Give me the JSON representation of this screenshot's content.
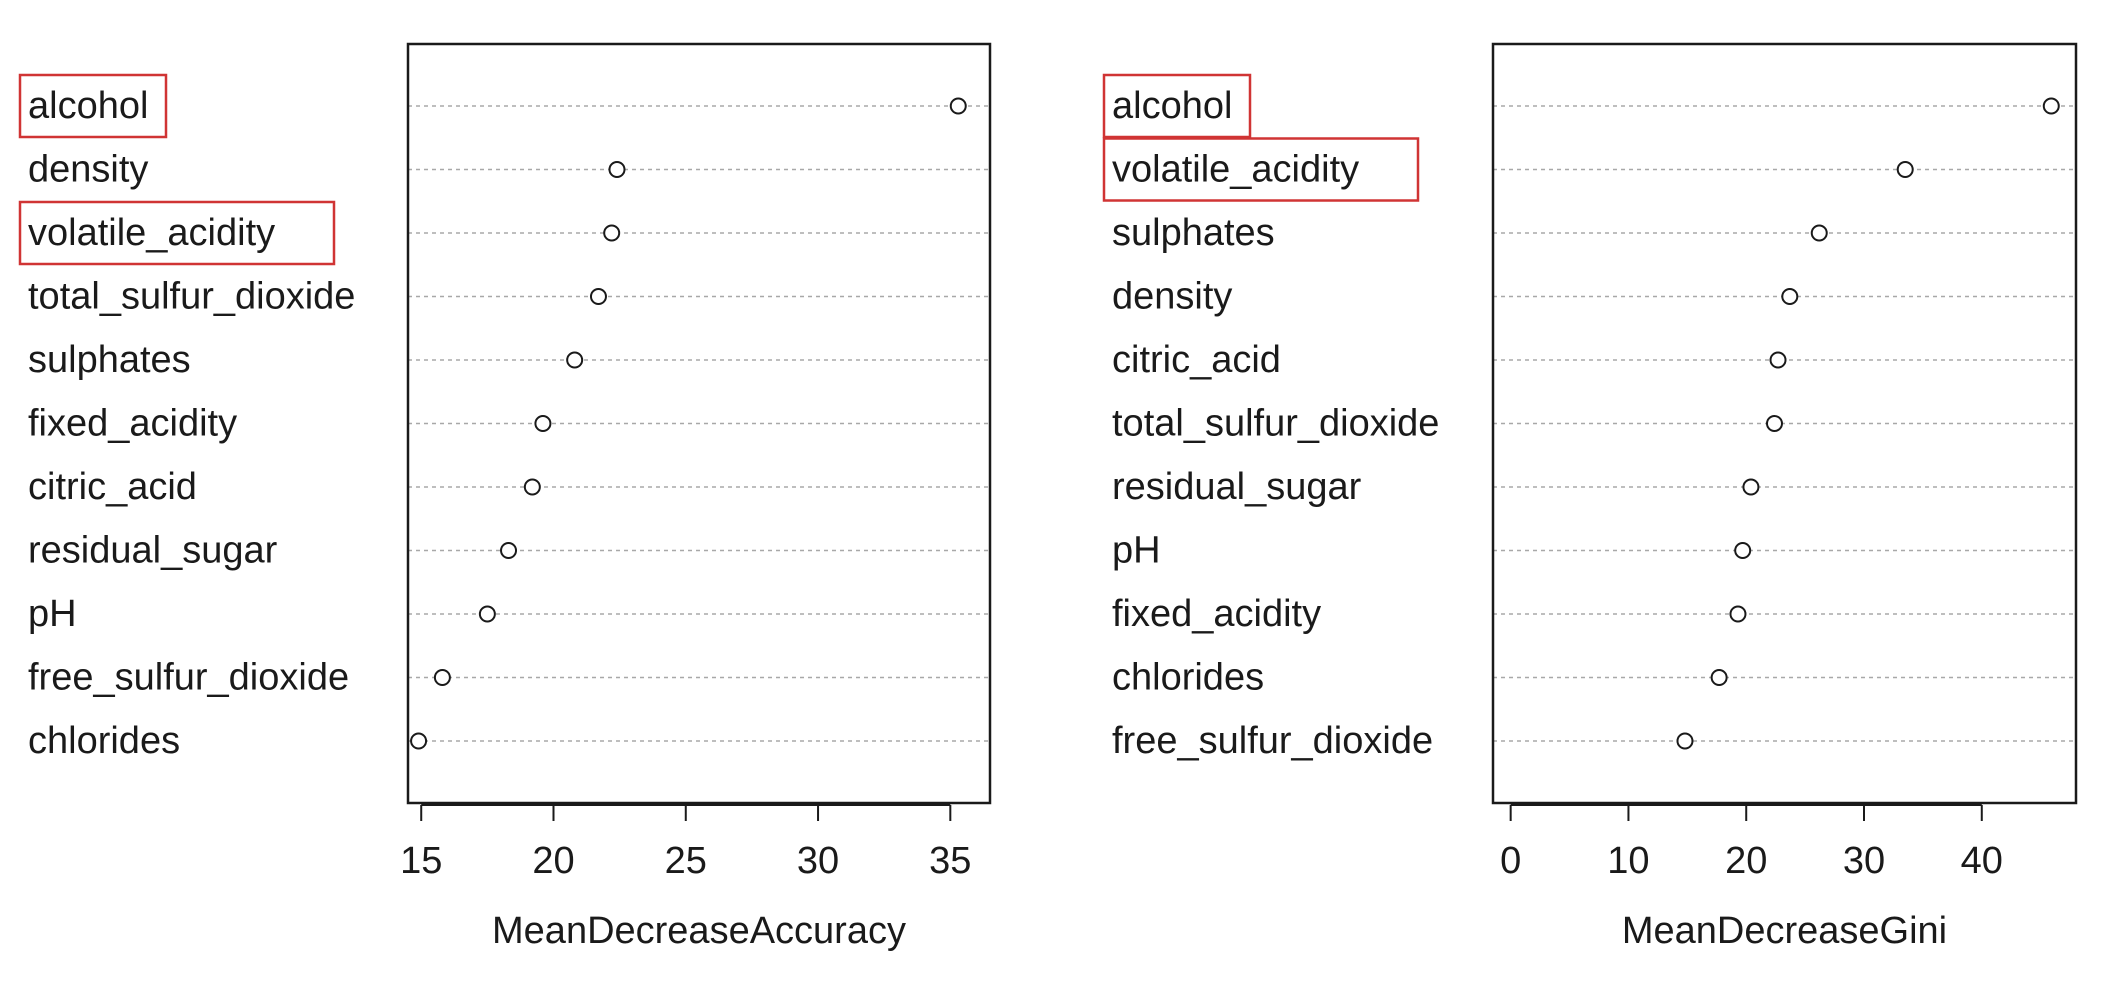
{
  "highlight_color": "#d03434",
  "chart_data": [
    {
      "type": "scatter",
      "variant": "dotchart",
      "xlabel": "MeanDecreaseAccuracy",
      "xlim": [
        14.5,
        36.5
      ],
      "xticks": [
        15,
        20,
        25,
        30,
        35
      ],
      "grid": "dotted horizontal guides",
      "categories": [
        "alcohol",
        "density",
        "volatile_acidity",
        "total_sulfur_dioxide",
        "sulphates",
        "fixed_acidity",
        "citric_acid",
        "residual_sugar",
        "pH",
        "free_sulfur_dioxide",
        "chlorides"
      ],
      "values": [
        35.3,
        22.4,
        22.2,
        21.7,
        20.8,
        19.6,
        19.2,
        18.3,
        17.5,
        15.8,
        14.9
      ],
      "highlighted": [
        "alcohol",
        "volatile_acidity"
      ]
    },
    {
      "type": "scatter",
      "variant": "dotchart",
      "xlabel": "MeanDecreaseGini",
      "xlim": [
        -1.5,
        48
      ],
      "xticks": [
        0,
        10,
        20,
        30,
        40
      ],
      "grid": "dotted horizontal guides",
      "categories": [
        "alcohol",
        "volatile_acidity",
        "sulphates",
        "density",
        "citric_acid",
        "total_sulfur_dioxide",
        "residual_sugar",
        "pH",
        "fixed_acidity",
        "chlorides",
        "free_sulfur_dioxide"
      ],
      "values": [
        45.9,
        33.5,
        26.2,
        23.7,
        22.7,
        22.4,
        20.4,
        19.7,
        19.3,
        17.7,
        14.8
      ],
      "highlighted": [
        "alcohol",
        "volatile_acidity"
      ]
    }
  ]
}
